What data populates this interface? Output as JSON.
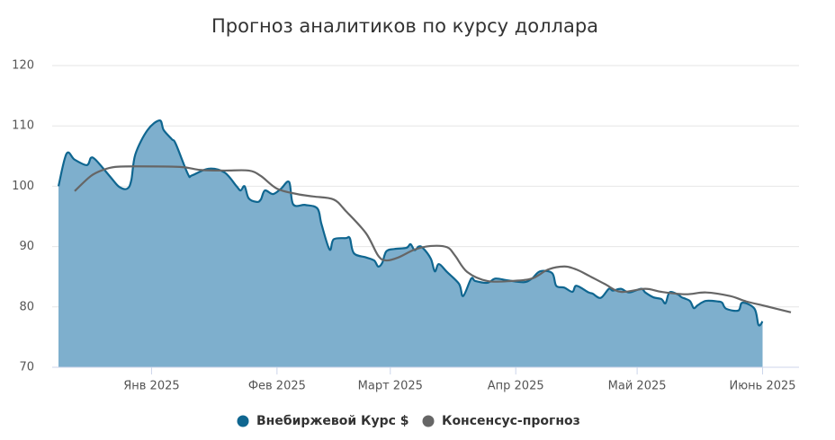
{
  "chart_data": {
    "type": "area",
    "title": "Прогноз аналитиков по курсу доллара",
    "xlim": [
      -23,
      160
    ],
    "xticks": [
      {
        "value": 0,
        "label": "Янв 2025"
      },
      {
        "value": 31,
        "label": "Фев 2025"
      },
      {
        "value": 59,
        "label": "Март 2025"
      },
      {
        "value": 90,
        "label": "Апр 2025"
      },
      {
        "value": 120,
        "label": "Май 2025"
      },
      {
        "value": 151,
        "label": "Июнь 2025"
      }
    ],
    "ylim": [
      70,
      120
    ],
    "yticks": [
      70,
      80,
      90,
      100,
      110,
      120
    ],
    "grid": true,
    "legend": "bottom",
    "series": [
      {
        "name": "Внебиржевой Курс $",
        "color": "#0f6690",
        "area_color": "#7eafcd",
        "kind": "area",
        "x": [
          -23,
          -21,
          -19,
          -16,
          -15,
          -14,
          -12,
          -10,
          -8,
          -6,
          -5,
          -4,
          -1,
          2,
          3,
          5,
          6,
          9,
          10,
          14,
          18,
          21,
          22,
          23,
          24,
          26,
          27,
          28,
          30,
          32,
          34,
          35,
          38,
          41,
          42,
          44,
          45,
          48,
          49,
          50,
          53,
          55,
          56,
          57,
          58,
          60,
          63,
          64,
          65,
          66,
          67,
          69,
          70,
          71,
          73,
          76,
          77,
          79,
          80,
          83,
          85,
          88,
          92,
          94,
          96,
          99,
          100,
          102,
          104,
          105,
          108,
          109,
          111,
          113,
          114,
          116,
          118,
          121,
          122,
          124,
          126,
          127,
          128,
          130,
          131,
          133,
          134,
          135,
          137,
          140,
          141,
          142,
          145,
          146,
          149,
          150,
          151
        ],
        "values": [
          100,
          105.4,
          104.4,
          103.5,
          104.7,
          104.5,
          103,
          101.4,
          99.9,
          99.6,
          101,
          105.3,
          109.3,
          110.9,
          109.3,
          107.8,
          107,
          102,
          101.8,
          102.9,
          102.3,
          100,
          99.3,
          100,
          98,
          97.4,
          97.8,
          99.3,
          98.7,
          99.6,
          100.7,
          97,
          96.9,
          96.3,
          93.7,
          89.5,
          91.2,
          91.4,
          91.4,
          88.9,
          88.2,
          87.7,
          86.7,
          87.3,
          89.2,
          89.6,
          89.8,
          90.4,
          89.4,
          90,
          89.8,
          88,
          85.9,
          87.1,
          85.8,
          83.8,
          81.8,
          84.7,
          84.3,
          84,
          84.7,
          84.4,
          84.1,
          84.7,
          85.9,
          85.6,
          83.5,
          83.2,
          82.5,
          83.5,
          82.4,
          82.2,
          81.5,
          83,
          82.7,
          83,
          82.4,
          83,
          82.4,
          81.6,
          81.3,
          80.6,
          82.4,
          82.1,
          81.6,
          81,
          79.8,
          80.3,
          81,
          80.9,
          80.7,
          79.7,
          79.4,
          80.7,
          79.7,
          77,
          77.6
        ]
      },
      {
        "name": "Консенсус-прогноз",
        "color": "#666666",
        "kind": "line",
        "x": [
          -19,
          -15,
          -12,
          -9,
          -4,
          7,
          12,
          18,
          24,
          27,
          31,
          36,
          40,
          45,
          48,
          53,
          56,
          58,
          61,
          65,
          69,
          73,
          75,
          78,
          83,
          89,
          94,
          98,
          102,
          105,
          108,
          112,
          116,
          122,
          126,
          132,
          137,
          143,
          147,
          152,
          158
        ],
        "values": [
          99.2,
          101.7,
          102.7,
          103.2,
          103.3,
          103.2,
          102.7,
          102.6,
          102.6,
          101.7,
          99.6,
          98.7,
          98.3,
          97.8,
          95.9,
          92.2,
          88.5,
          87.7,
          88.2,
          89.5,
          90.1,
          89.9,
          88.5,
          85.8,
          84.3,
          84.3,
          84.7,
          86.2,
          86.7,
          86.2,
          85.2,
          83.8,
          82.5,
          83,
          82.5,
          82.1,
          82.4,
          81.8,
          80.9,
          80.1,
          79.1
        ]
      }
    ]
  }
}
